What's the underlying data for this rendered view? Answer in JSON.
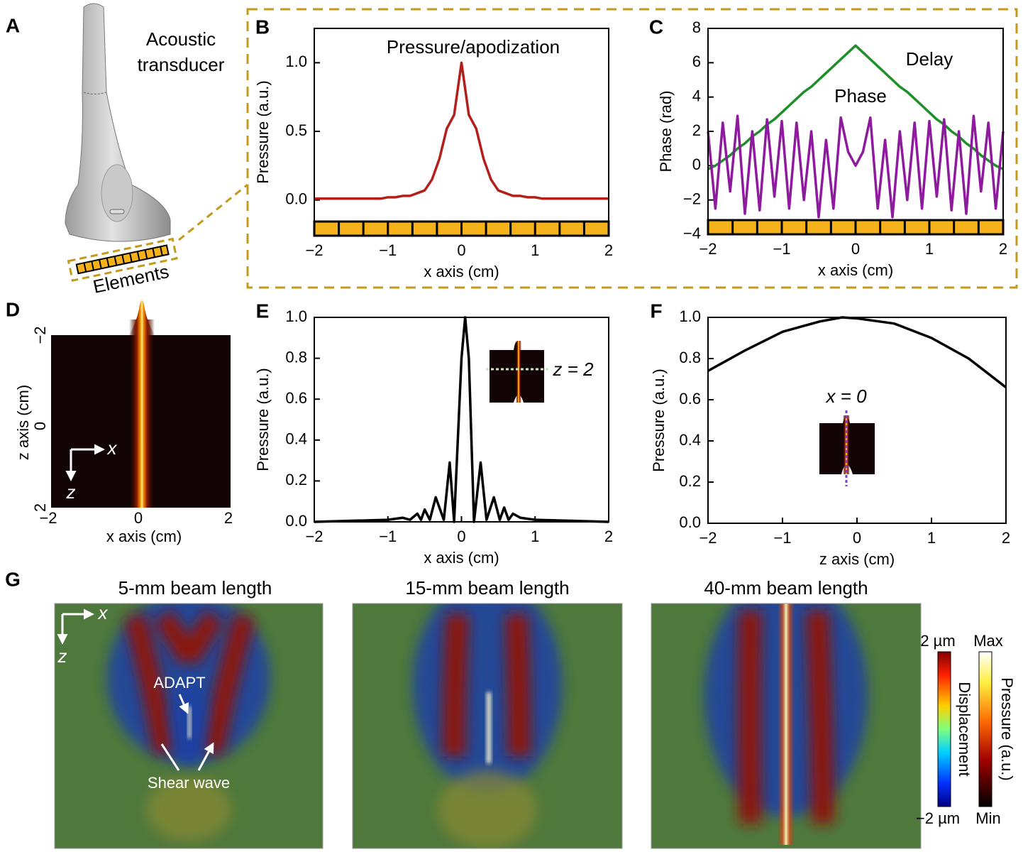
{
  "panel_labels": [
    "A",
    "D",
    "G"
  ],
  "transducer": {
    "title_lines": [
      "Acoustic",
      "transducer"
    ],
    "elements": "Elements"
  },
  "chart_data": [
    {
      "type": "line",
      "label": "B",
      "x": [
        -2,
        -1.9,
        -1.8,
        -1.7,
        -1.6,
        -1.5,
        -1.4,
        -1.3,
        -1.2,
        -1.1,
        -1,
        -0.9,
        -0.8,
        -0.7,
        -0.6,
        -0.5,
        -0.4,
        -0.3,
        -0.2,
        -0.1,
        0,
        0.1,
        0.2,
        0.3,
        0.4,
        0.5,
        0.6,
        0.7,
        0.8,
        0.9,
        1,
        1.1,
        1.2,
        1.3,
        1.4,
        1.5,
        1.6,
        1.7,
        1.8,
        1.9,
        2
      ],
      "series": [
        {
          "name": "Pressure/apodization",
          "color": "#b3201c",
          "values": [
            0.01,
            0.01,
            0.01,
            0.01,
            0.01,
            0.01,
            0.01,
            0.01,
            0.01,
            0.01,
            0.02,
            0.02,
            0.03,
            0.03,
            0.05,
            0.07,
            0.15,
            0.3,
            0.52,
            0.62,
            1.0,
            0.62,
            0.52,
            0.3,
            0.15,
            0.07,
            0.05,
            0.03,
            0.03,
            0.02,
            0.02,
            0.01,
            0.01,
            0.01,
            0.01,
            0.01,
            0.01,
            0.01,
            0.01,
            0.01,
            0.01
          ]
        }
      ],
      "xlim": [
        -2,
        2
      ],
      "ylim": [
        -0.26,
        1.25
      ],
      "xticks": [
        {
          "value": -2,
          "label": "−2"
        },
        {
          "value": -1,
          "label": "−1"
        },
        0,
        1,
        2
      ],
      "yticks": [
        {
          "value": 0,
          "label": "0.0"
        },
        {
          "value": 0.5,
          "label": "0.5"
        },
        {
          "value": 1,
          "label": "1.0"
        }
      ],
      "xlabel": "x axis (cm)",
      "ylabel": "Pressure (a.u.)"
    },
    {
      "type": "line",
      "label": "C",
      "x": [
        -2,
        -1.9,
        -1.8,
        -1.7,
        -1.6,
        -1.5,
        -1.4,
        -1.3,
        -1.2,
        -1.1,
        -1,
        -0.9,
        -0.8,
        -0.7,
        -0.6,
        -0.5,
        -0.4,
        -0.3,
        -0.2,
        -0.1,
        0,
        0.1,
        0.2,
        0.3,
        0.4,
        0.5,
        0.6,
        0.7,
        0.8,
        0.9,
        1,
        1.1,
        1.2,
        1.3,
        1.4,
        1.5,
        1.6,
        1.7,
        1.8,
        1.9,
        2
      ],
      "series": [
        {
          "name": "Delay",
          "color": "#1f8f2a",
          "values": [
            -0.2,
            0.0,
            0.3,
            0.6,
            1.0,
            1.3,
            1.7,
            2.0,
            2.4,
            2.7,
            3.1,
            3.5,
            3.9,
            4.3,
            4.6,
            5.0,
            5.4,
            5.8,
            6.2,
            6.6,
            7.0,
            6.6,
            6.2,
            5.8,
            5.4,
            5.0,
            4.6,
            4.3,
            3.9,
            3.5,
            3.1,
            2.7,
            2.4,
            2.0,
            1.7,
            1.3,
            1.0,
            0.6,
            0.3,
            0.0,
            -0.2
          ]
        },
        {
          "name": "Phase",
          "color": "#8e1a9e",
          "values": [
            2.0,
            -2.5,
            2.5,
            -1.5,
            2.9,
            -2.8,
            2.0,
            -2.6,
            2.7,
            -1.8,
            2.6,
            -2.5,
            2.5,
            -2.0,
            2.0,
            -3.0,
            1.5,
            -2.5,
            2.8,
            0.8,
            0,
            0.8,
            2.8,
            -2.5,
            1.5,
            -3.0,
            2.0,
            -2.0,
            2.5,
            -2.5,
            2.6,
            -1.8,
            2.7,
            -2.6,
            2.0,
            -2.8,
            2.9,
            -1.5,
            2.5,
            -2.5,
            2.0
          ]
        }
      ],
      "xlim": [
        -2,
        2
      ],
      "ylim": [
        -4,
        8
      ],
      "xticks": [
        {
          "value": -2,
          "label": "−2"
        },
        {
          "value": -1,
          "label": "−1"
        },
        0,
        1,
        2
      ],
      "yticks": [
        {
          "value": -4,
          "label": "−4"
        },
        {
          "value": -2,
          "label": "−2"
        },
        0,
        2,
        4,
        6,
        8
      ],
      "xlabel": "x axis (cm)",
      "ylabel": "Phase (rad)"
    },
    {
      "type": "line",
      "label": "E",
      "x": [
        -2,
        -1.5,
        -1,
        -0.8,
        -0.7,
        -0.6,
        -0.55,
        -0.5,
        -0.43,
        -0.35,
        -0.24,
        -0.16,
        -0.1,
        -0.05,
        0,
        0.05,
        0.1,
        0.17,
        0.26,
        0.34,
        0.44,
        0.52,
        0.58,
        0.64,
        0.7,
        0.8,
        1,
        1.5,
        2
      ],
      "series": [
        {
          "color": "#000000",
          "values": [
            0,
            0.005,
            0.01,
            0.02,
            0.01,
            0.04,
            0.01,
            0.06,
            0.01,
            0.12,
            0.01,
            0.29,
            0,
            0.4,
            0.8,
            1.0,
            0.8,
            0,
            0.29,
            0.01,
            0.12,
            0.01,
            0.07,
            0.01,
            0.04,
            0.02,
            0.01,
            0.005,
            0
          ]
        }
      ],
      "xlim": [
        -2,
        2
      ],
      "ylim": [
        0,
        1
      ],
      "xticks": [
        {
          "value": -2,
          "label": "−2"
        },
        {
          "value": -1,
          "label": "−1"
        },
        0,
        1,
        2
      ],
      "yticks": [
        {
          "value": 0,
          "label": "0.0"
        },
        {
          "value": 0.2,
          "label": "0.2"
        },
        {
          "value": 0.4,
          "label": "0.4"
        },
        {
          "value": 0.6,
          "label": "0.6"
        },
        {
          "value": 0.8,
          "label": "0.8"
        },
        {
          "value": 1,
          "label": "1.0"
        }
      ],
      "xlabel": "x axis (cm)",
      "ylabel": "Pressure (a.u.)",
      "annotation": "z = 2"
    },
    {
      "type": "line",
      "label": "F",
      "x": [
        -2,
        -1.5,
        -1,
        -0.5,
        -0.2,
        0,
        0.5,
        1,
        1.5,
        2
      ],
      "series": [
        {
          "color": "#000000",
          "values": [
            0.74,
            0.84,
            0.93,
            0.98,
            1.0,
            0.995,
            0.97,
            0.9,
            0.8,
            0.66
          ]
        }
      ],
      "xlim": [
        -2,
        2
      ],
      "ylim": [
        0,
        1
      ],
      "xticks": [
        {
          "value": -2,
          "label": "−2"
        },
        {
          "value": -1,
          "label": "−1"
        },
        0,
        1,
        2
      ],
      "yticks": [
        {
          "value": 0,
          "label": "0.0"
        },
        {
          "value": 0.2,
          "label": "0.2"
        },
        {
          "value": 0.4,
          "label": "0.4"
        },
        {
          "value": 0.6,
          "label": "0.6"
        },
        {
          "value": 0.8,
          "label": "0.8"
        },
        {
          "value": 1,
          "label": "1.0"
        }
      ],
      "xlabel": "z axis (cm)",
      "ylabel": "Pressure (a.u.)",
      "annotation": "x = 0"
    }
  ],
  "heatmap": {
    "xticks": [
      "−2",
      "0",
      "2"
    ],
    "zticks": [
      "−2",
      "0",
      "2"
    ],
    "xlabel": "x axis (cm)",
    "zlabel": "z axis (cm)",
    "axis_x": "x",
    "axis_z": "z"
  },
  "beam_maps": {
    "titles": [
      "5-mm beam length",
      "15-mm beam length",
      "40-mm beam length"
    ],
    "axis_x": "x",
    "axis_z": "z",
    "adapt": "ADAPT",
    "shear_wave": "Shear wave"
  },
  "colorbars": [
    {
      "label": "Displacement",
      "max": "2 µm",
      "min": "−2 µm"
    },
    {
      "label": "Pressure (a.u.)",
      "max": "Max",
      "min": "Min"
    }
  ]
}
